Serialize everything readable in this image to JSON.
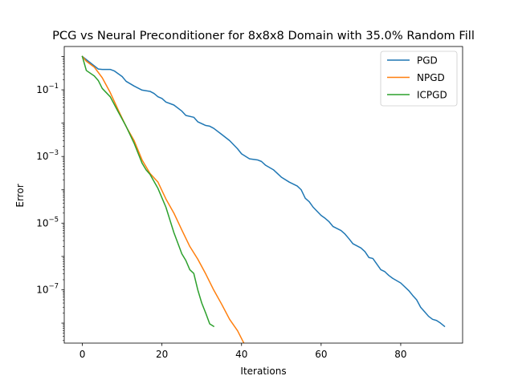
{
  "chart_data": {
    "type": "line",
    "title": "PCG vs Neural Preconditioner for 8x8x8 Domain with 35.0% Random Fill",
    "xlabel": "Iterations",
    "ylabel": "Error",
    "xlim": [
      -4.55,
      95.55
    ],
    "ylim_log10": [
      -8.6,
      0.3
    ],
    "yscale": "log",
    "x_ticks": [
      0,
      20,
      40,
      60,
      80
    ],
    "y_ticks": [
      {
        "exp": -7,
        "label": "10",
        "sup": "−7"
      },
      {
        "exp": -5,
        "label": "10",
        "sup": "−5"
      },
      {
        "exp": -3,
        "label": "10",
        "sup": "−3"
      },
      {
        "exp": -1,
        "label": "10",
        "sup": "−1"
      }
    ],
    "legend": "top-right",
    "grid": false,
    "series": [
      {
        "name": "PGD",
        "color": "#1f77b4",
        "points": [
          [
            0,
            1.0
          ],
          [
            4,
            0.42
          ],
          [
            5,
            0.41
          ],
          [
            7,
            0.41
          ],
          [
            8,
            0.37
          ],
          [
            10,
            0.25
          ],
          [
            11,
            0.18
          ],
          [
            13,
            0.13
          ],
          [
            15,
            0.098
          ],
          [
            17,
            0.09
          ],
          [
            18,
            0.078
          ],
          [
            19,
            0.062
          ],
          [
            20,
            0.055
          ],
          [
            21,
            0.043
          ],
          [
            23,
            0.035
          ],
          [
            25,
            0.023
          ],
          [
            26,
            0.017
          ],
          [
            28,
            0.015
          ],
          [
            29,
            0.011
          ],
          [
            31,
            0.0085
          ],
          [
            32,
            0.0081
          ],
          [
            33,
            0.007
          ],
          [
            35,
            0.0046
          ],
          [
            37,
            0.003
          ],
          [
            39,
            0.0017
          ],
          [
            40,
            0.0012
          ],
          [
            42,
            0.00085
          ],
          [
            44,
            0.00079
          ],
          [
            45,
            0.00071
          ],
          [
            46,
            0.00055
          ],
          [
            48,
            0.0004
          ],
          [
            50,
            0.00024
          ],
          [
            52,
            0.00017
          ],
          [
            54,
            0.00013
          ],
          [
            55,
            0.0001
          ],
          [
            56,
            5.6e-05
          ],
          [
            57,
            4.4e-05
          ],
          [
            58,
            3e-05
          ],
          [
            60,
            1.7e-05
          ],
          [
            61,
            1.4e-05
          ],
          [
            62,
            1.1e-05
          ],
          [
            63,
            7.9e-06
          ],
          [
            65,
            6e-06
          ],
          [
            66,
            4.7e-06
          ],
          [
            67,
            3.4e-06
          ],
          [
            68,
            2.4e-06
          ],
          [
            70,
            1.8e-06
          ],
          [
            71,
            1.4e-06
          ],
          [
            72,
            9.3e-07
          ],
          [
            73,
            8.7e-07
          ],
          [
            74,
            5.9e-07
          ],
          [
            75,
            4e-07
          ],
          [
            76,
            3.5e-07
          ],
          [
            77,
            2.7e-07
          ],
          [
            78,
            2.2e-07
          ],
          [
            80,
            1.6e-07
          ],
          [
            82,
            9.5e-08
          ],
          [
            83,
            6.8e-08
          ],
          [
            84,
            5e-08
          ],
          [
            85,
            3e-08
          ],
          [
            86,
            2.2e-08
          ],
          [
            87,
            1.6e-08
          ],
          [
            88,
            1.3e-08
          ],
          [
            89,
            1.2e-08
          ],
          [
            90,
            1e-08
          ],
          [
            91,
            8e-09
          ]
        ]
      },
      {
        "name": "NPGD",
        "color": "#ff7f0e",
        "points": [
          [
            0,
            1.0
          ],
          [
            1,
            0.72
          ],
          [
            3,
            0.48
          ],
          [
            5,
            0.23
          ],
          [
            7,
            0.083
          ],
          [
            9,
            0.025
          ],
          [
            11,
            0.0079
          ],
          [
            13,
            0.003
          ],
          [
            15,
            0.00079
          ],
          [
            17,
            0.00031
          ],
          [
            19,
            0.00017
          ],
          [
            21,
            5.3e-05
          ],
          [
            23,
            2e-05
          ],
          [
            25,
            6.2e-06
          ],
          [
            27,
            2e-06
          ],
          [
            29,
            8.3e-07
          ],
          [
            31,
            3e-07
          ],
          [
            33,
            9.9e-08
          ],
          [
            35,
            3.7e-08
          ],
          [
            37,
            1.3e-08
          ],
          [
            39,
            5.9e-09
          ],
          [
            41,
            2e-09
          ],
          [
            42,
            1e-09
          ]
        ]
      },
      {
        "name": "ICPGD",
        "color": "#2ca02c",
        "points": [
          [
            0,
            1.0
          ],
          [
            1,
            0.38
          ],
          [
            3,
            0.26
          ],
          [
            4,
            0.19
          ],
          [
            5,
            0.11
          ],
          [
            7,
            0.062
          ],
          [
            9,
            0.022
          ],
          [
            11,
            0.008
          ],
          [
            13,
            0.0025
          ],
          [
            15,
            0.00063
          ],
          [
            16,
            0.0004
          ],
          [
            17,
            0.00029
          ],
          [
            19,
            0.00011
          ],
          [
            21,
            3e-05
          ],
          [
            23,
            5.2e-06
          ],
          [
            24,
            2.5e-06
          ],
          [
            25,
            1.2e-06
          ],
          [
            26,
            7.6e-07
          ],
          [
            27,
            4e-07
          ],
          [
            28,
            3.1e-07
          ],
          [
            29,
            1e-07
          ],
          [
            30,
            4e-08
          ],
          [
            31,
            2e-08
          ],
          [
            32,
            9.5e-09
          ],
          [
            33,
            8e-09
          ]
        ]
      }
    ]
  }
}
